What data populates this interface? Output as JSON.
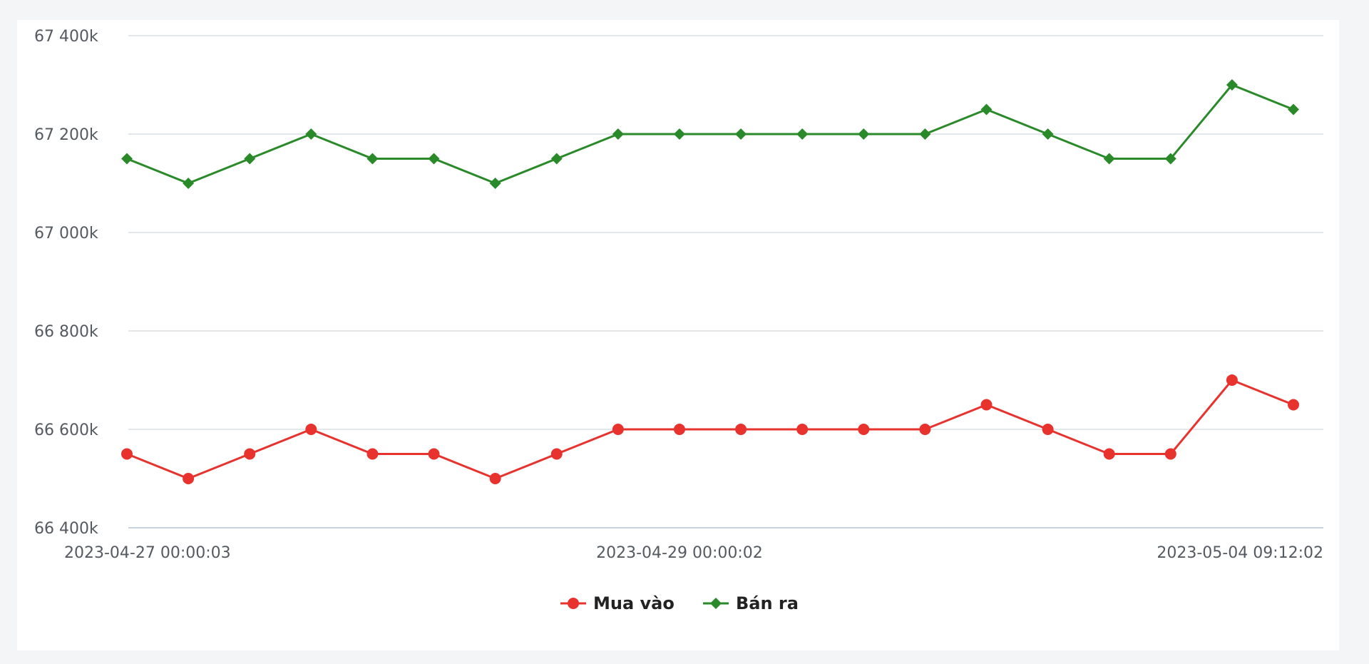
{
  "chart_data": {
    "type": "line",
    "title": "",
    "xlabel": "",
    "ylabel": "",
    "ylim": [
      66400,
      67400
    ],
    "grid": true,
    "legend_position": "bottom-center",
    "y_ticks": [
      {
        "value": 66400,
        "label": "66 400k"
      },
      {
        "value": 66600,
        "label": "66 600k"
      },
      {
        "value": 66800,
        "label": "66 800k"
      },
      {
        "value": 67000,
        "label": "67 000k"
      },
      {
        "value": 67200,
        "label": "67 200k"
      },
      {
        "value": 67400,
        "label": "67 400k"
      }
    ],
    "x_tick_labels": [
      {
        "index": 0,
        "label": "2023-04-27 00:00:03"
      },
      {
        "index": 9,
        "label": "2023-04-29 00:00:02"
      },
      {
        "index": 19,
        "label": "2023-05-04 09:12:02"
      }
    ],
    "point_count": 20,
    "series": [
      {
        "name": "Mua vào",
        "color": "#e8322e",
        "marker": "circle",
        "values": [
          66550,
          66500,
          66550,
          66600,
          66550,
          66550,
          66500,
          66550,
          66600,
          66600,
          66600,
          66600,
          66600,
          66600,
          66650,
          66600,
          66550,
          66550,
          66700,
          66650
        ]
      },
      {
        "name": "Bán ra",
        "color": "#2a8a2a",
        "marker": "diamond",
        "values": [
          67150,
          67100,
          67150,
          67200,
          67150,
          67150,
          67100,
          67150,
          67200,
          67200,
          67200,
          67200,
          67200,
          67200,
          67250,
          67200,
          67150,
          67150,
          67300,
          67250
        ]
      }
    ]
  }
}
